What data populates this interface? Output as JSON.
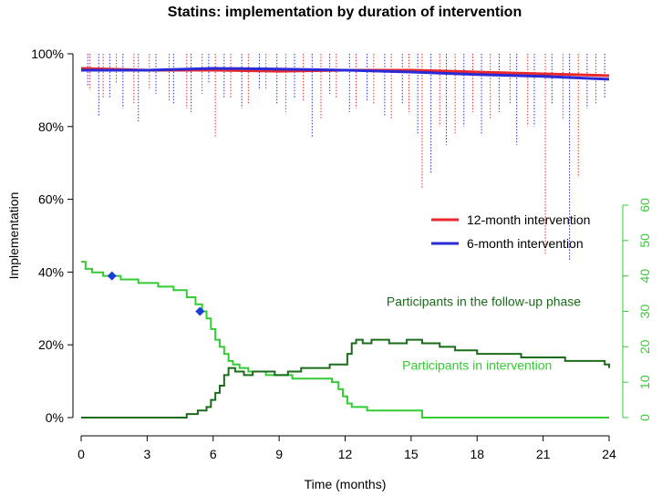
{
  "chart_data": {
    "type": "line",
    "title": "Statins: implementation by duration of intervention",
    "xlabel": "Time (months)",
    "ylabel": "Implementation",
    "xlim": [
      0,
      24
    ],
    "ylim": [
      0,
      100
    ],
    "y2lim": [
      0,
      60
    ],
    "x_ticks": [
      0,
      3,
      6,
      9,
      12,
      15,
      18,
      21,
      24
    ],
    "y_ticks": [
      0,
      20,
      40,
      60,
      80,
      100
    ],
    "y_tick_labels": [
      "0%",
      "20%",
      "40%",
      "60%",
      "80%",
      "100%"
    ],
    "y2_ticks": [
      0,
      10,
      20,
      30,
      40,
      50,
      60
    ],
    "legend_position": "center-right",
    "colors": {
      "red": "#e8282a",
      "blue": "#2a2ad6",
      "light_green": "#33cc33",
      "dark_green": "#1a6b1a",
      "axis_green": "#33cc33"
    },
    "series": [
      {
        "name": "12-month intervention",
        "axis": "left",
        "color": "#e8282a",
        "x": [
          0,
          3,
          6,
          9,
          12,
          15,
          18,
          21,
          24
        ],
        "y": [
          96,
          95.5,
          95.5,
          95.2,
          95.5,
          95.5,
          95,
          94.5,
          94
        ]
      },
      {
        "name": "6-month intervention",
        "axis": "left",
        "color": "#2a2ad6",
        "x": [
          0,
          3,
          6,
          9,
          12,
          15,
          18,
          21,
          24
        ],
        "y": [
          95.5,
          95.5,
          96,
          95.8,
          95.5,
          95,
          94.3,
          93.8,
          93
        ]
      },
      {
        "name": "12-month intervention (individual)",
        "axis": "left",
        "style": "dotted",
        "color": "#e8282a",
        "x": [
          0.4,
          1.0,
          1.6,
          2.4,
          3.1,
          4.0,
          4.8,
          5.5,
          6.1,
          6.8,
          7.6,
          8.4,
          9.3,
          10.1,
          10.9,
          11.6,
          12.5,
          13.3,
          14.1,
          14.9,
          15.5,
          16.3,
          17.0,
          17.8,
          18.6,
          19.5,
          20.3,
          21.1,
          21.9,
          22.6,
          23.4
        ],
        "y": [
          90,
          88,
          92,
          86,
          90,
          87,
          85,
          89,
          77,
          88,
          86,
          90,
          84,
          87,
          82,
          88,
          85,
          86,
          82,
          84,
          63,
          80,
          78,
          84,
          82,
          86,
          80,
          45,
          82,
          66,
          86
        ]
      },
      {
        "name": "6-month intervention (individual)",
        "axis": "left",
        "style": "dotted",
        "color": "#2a2ad6",
        "x": [
          0.3,
          0.8,
          1.3,
          1.9,
          2.6,
          3.4,
          4.2,
          5.0,
          5.8,
          6.5,
          7.3,
          8.1,
          8.9,
          9.7,
          10.5,
          11.3,
          12.2,
          13.0,
          13.8,
          14.6,
          15.3,
          15.9,
          16.6,
          17.4,
          18.2,
          19.0,
          19.8,
          20.6,
          21.4,
          22.2,
          23.0,
          23.8
        ],
        "y": [
          91,
          83,
          88,
          85,
          81,
          89,
          86,
          84,
          92,
          88,
          85,
          90,
          86,
          88,
          77,
          89,
          84,
          87,
          83,
          86,
          78,
          67,
          75,
          80,
          78,
          84,
          75,
          80,
          86,
          43,
          85,
          88
        ]
      },
      {
        "name": "Participants in intervention",
        "axis": "right",
        "step": true,
        "color": "#33cc33",
        "x": [
          0,
          0.2,
          0.5,
          1.0,
          1.8,
          2.6,
          3.5,
          4.2,
          4.8,
          5.2,
          5.5,
          5.7,
          5.9,
          6.1,
          6.3,
          6.5,
          6.7,
          6.9,
          7.2,
          7.6,
          8.0,
          8.4,
          9.0,
          9.6,
          10.6,
          11.4,
          11.7,
          11.9,
          12.1,
          12.3,
          12.5,
          13.0,
          15.5,
          24
        ],
        "y": [
          44,
          42,
          41,
          40,
          39,
          38,
          37,
          36,
          34,
          32,
          30,
          28,
          25,
          22,
          20,
          18,
          16,
          15,
          14,
          13,
          13,
          12,
          12,
          11,
          11,
          10,
          8,
          6,
          4,
          3,
          3,
          2,
          0,
          0
        ]
      },
      {
        "name": "Participants in the follow-up phase",
        "axis": "right",
        "step": true,
        "color": "#1a6b1a",
        "x": [
          0,
          4.8,
          5.3,
          5.7,
          5.9,
          6.1,
          6.3,
          6.5,
          6.7,
          7.0,
          7.4,
          7.8,
          8.3,
          8.8,
          9.4,
          10.0,
          10.7,
          11.3,
          12.1,
          12.3,
          12.5,
          12.8,
          13.2,
          14.0,
          14.8,
          15.5,
          16.3,
          17.0,
          18.0,
          20.0,
          22.0,
          23.8,
          24
        ],
        "y": [
          0,
          1,
          2,
          3,
          5,
          7,
          9,
          12,
          14,
          13,
          12,
          13,
          13,
          12,
          13,
          14,
          14,
          15,
          18,
          21,
          22,
          21,
          22,
          21,
          22,
          21,
          20,
          19,
          18,
          17,
          16,
          15,
          14
        ]
      }
    ],
    "markers": [
      {
        "x": 1.4,
        "y": 40,
        "axis": "right",
        "shape": "diamond",
        "color": "#1a3fd6"
      },
      {
        "x": 5.4,
        "y": 30,
        "axis": "right",
        "shape": "diamond",
        "color": "#1a3fd6"
      }
    ],
    "annotations": [
      {
        "text": "Participants in the follow-up phase",
        "x": 18.3,
        "y": 31.5,
        "axis": "right",
        "color": "#1a6b1a"
      },
      {
        "text": "Participants in intervention",
        "x": 18.0,
        "y": 13.5,
        "axis": "right",
        "color": "#33cc33"
      }
    ],
    "legend": [
      {
        "label": "12-month intervention",
        "color": "#e8282a"
      },
      {
        "label": "6-month intervention",
        "color": "#2a2ad6"
      }
    ]
  }
}
